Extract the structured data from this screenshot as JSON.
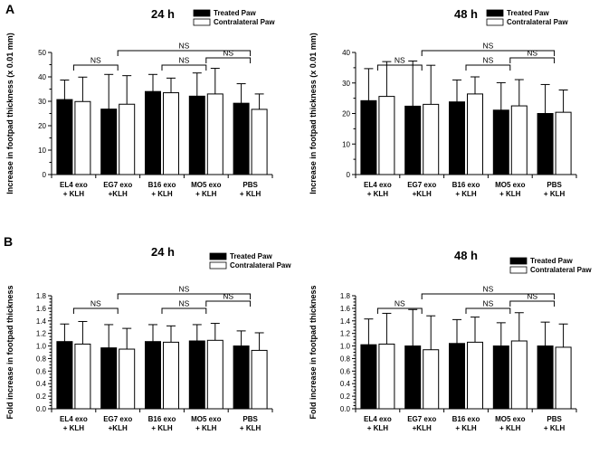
{
  "panel_labels": {
    "a": "A",
    "b": "B"
  },
  "chart_data": [
    {
      "type": "bar",
      "panel": "A",
      "title": "24 h",
      "ylabel": "Increase in footpad thickness (x 0.01 mm)",
      "ylim": [
        0,
        50
      ],
      "yticks": [
        0,
        10,
        20,
        30,
        40,
        50
      ],
      "categories": [
        [
          "EL4 exo",
          "+ KLH"
        ],
        [
          "EG7 exo",
          "+KLH"
        ],
        [
          "B16 exo",
          "+ KLH"
        ],
        [
          "MO5 exo",
          "+ KLH"
        ],
        [
          "PBS",
          "+ KLH"
        ]
      ],
      "series": [
        {
          "name": "Treated Paw",
          "color": "#000000",
          "values": [
            30.7,
            26.8,
            34.0,
            32.1,
            29.2
          ],
          "errors": [
            8.0,
            14.2,
            7.0,
            9.5,
            8.0
          ]
        },
        {
          "name": "Contralateral Paw",
          "color": "#ffffff",
          "values": [
            29.9,
            28.8,
            33.5,
            33.0,
            26.7
          ],
          "errors": [
            10.0,
            11.7,
            6.0,
            10.5,
            6.3
          ]
        }
      ],
      "annotations": [
        {
          "text": "NS",
          "from": 0,
          "to": 1,
          "level": 0
        },
        {
          "text": "NS",
          "from": 2,
          "to": 3,
          "level": 0
        },
        {
          "text": "NS",
          "from": 3,
          "to": 4,
          "level": 1
        },
        {
          "text": "NS",
          "from": 1,
          "to": 4,
          "level": 2
        }
      ]
    },
    {
      "type": "bar",
      "panel": "A",
      "title": "48 h",
      "ylabel": "Increase in footpad thickness (x 0.01 mm)",
      "ylim": [
        0,
        40
      ],
      "yticks": [
        0,
        10,
        20,
        30,
        40
      ],
      "categories": [
        [
          "EL4 exo",
          "+ KLH"
        ],
        [
          "EG7 exo",
          "+KLH"
        ],
        [
          "B16 exo",
          "+ KLH"
        ],
        [
          "MO5 exo",
          "+ KLH"
        ],
        [
          "PBS",
          "+ KLH"
        ]
      ],
      "series": [
        {
          "name": "Treated Paw",
          "color": "#000000",
          "values": [
            24.2,
            22.4,
            23.8,
            21.1,
            20.0
          ],
          "errors": [
            10.5,
            14.8,
            7.2,
            9.0,
            9.5
          ]
        },
        {
          "name": "Contralateral Paw",
          "color": "#ffffff",
          "values": [
            25.6,
            23.0,
            26.4,
            22.5,
            20.4
          ],
          "errors": [
            11.4,
            12.8,
            5.6,
            8.6,
            7.3
          ]
        }
      ],
      "annotations": [
        {
          "text": "NS",
          "from": 0,
          "to": 1,
          "level": 0
        },
        {
          "text": "NS",
          "from": 2,
          "to": 3,
          "level": 0
        },
        {
          "text": "NS",
          "from": 3,
          "to": 4,
          "level": 1
        },
        {
          "text": "NS",
          "from": 1,
          "to": 4,
          "level": 2
        }
      ]
    },
    {
      "type": "bar",
      "panel": "B",
      "title": "24 h",
      "ylabel": "Fold increase in footpad thickness",
      "ylim": [
        0,
        1.8
      ],
      "yticks": [
        0.0,
        0.2,
        0.4,
        0.6,
        0.8,
        1.0,
        1.2,
        1.4,
        1.6,
        1.8
      ],
      "categories": [
        [
          "EL4 exo",
          "+ KLH"
        ],
        [
          "EG7 exo",
          "+KLH"
        ],
        [
          "B16 exo",
          "+ KLH"
        ],
        [
          "MO5 exo",
          "+ KLH"
        ],
        [
          "PBS",
          "+ KLH"
        ]
      ],
      "series": [
        {
          "name": "Treated Paw",
          "color": "#000000",
          "values": [
            1.07,
            0.97,
            1.07,
            1.08,
            1.0
          ],
          "errors": [
            0.28,
            0.37,
            0.27,
            0.26,
            0.24
          ]
        },
        {
          "name": "Contralateral Paw",
          "color": "#ffffff",
          "values": [
            1.03,
            0.95,
            1.06,
            1.09,
            0.93
          ],
          "errors": [
            0.36,
            0.33,
            0.26,
            0.27,
            0.28
          ]
        }
      ],
      "annotations": [
        {
          "text": "NS",
          "from": 0,
          "to": 1,
          "level": 0
        },
        {
          "text": "NS",
          "from": 2,
          "to": 3,
          "level": 0
        },
        {
          "text": "NS",
          "from": 3,
          "to": 4,
          "level": 1
        },
        {
          "text": "NS",
          "from": 1,
          "to": 4,
          "level": 2
        }
      ]
    },
    {
      "type": "bar",
      "panel": "B",
      "title": "48 h",
      "ylabel": "Fold increase in footpad thickness",
      "ylim": [
        0,
        1.8
      ],
      "yticks": [
        0.0,
        0.2,
        0.4,
        0.6,
        0.8,
        1.0,
        1.2,
        1.4,
        1.6,
        1.8
      ],
      "categories": [
        [
          "EL4 exo",
          "+ KLH"
        ],
        [
          "EG7 exo",
          "+KLH"
        ],
        [
          "B16 exo",
          "+ KLH"
        ],
        [
          "MO5 exo",
          "+ KLH"
        ],
        [
          "PBS",
          "+ KLH"
        ]
      ],
      "series": [
        {
          "name": "Treated Paw",
          "color": "#000000",
          "values": [
            1.02,
            1.0,
            1.04,
            1.0,
            1.0
          ],
          "errors": [
            0.41,
            0.58,
            0.38,
            0.37,
            0.38
          ]
        },
        {
          "name": "Contralateral Paw",
          "color": "#ffffff",
          "values": [
            1.03,
            0.94,
            1.06,
            1.08,
            0.98
          ],
          "errors": [
            0.49,
            0.54,
            0.4,
            0.45,
            0.37
          ]
        }
      ],
      "annotations": [
        {
          "text": "NS",
          "from": 0,
          "to": 1,
          "level": 0
        },
        {
          "text": "NS",
          "from": 2,
          "to": 3,
          "level": 0
        },
        {
          "text": "NS",
          "from": 3,
          "to": 4,
          "level": 1
        },
        {
          "text": "NS",
          "from": 1,
          "to": 4,
          "level": 2
        }
      ]
    }
  ]
}
